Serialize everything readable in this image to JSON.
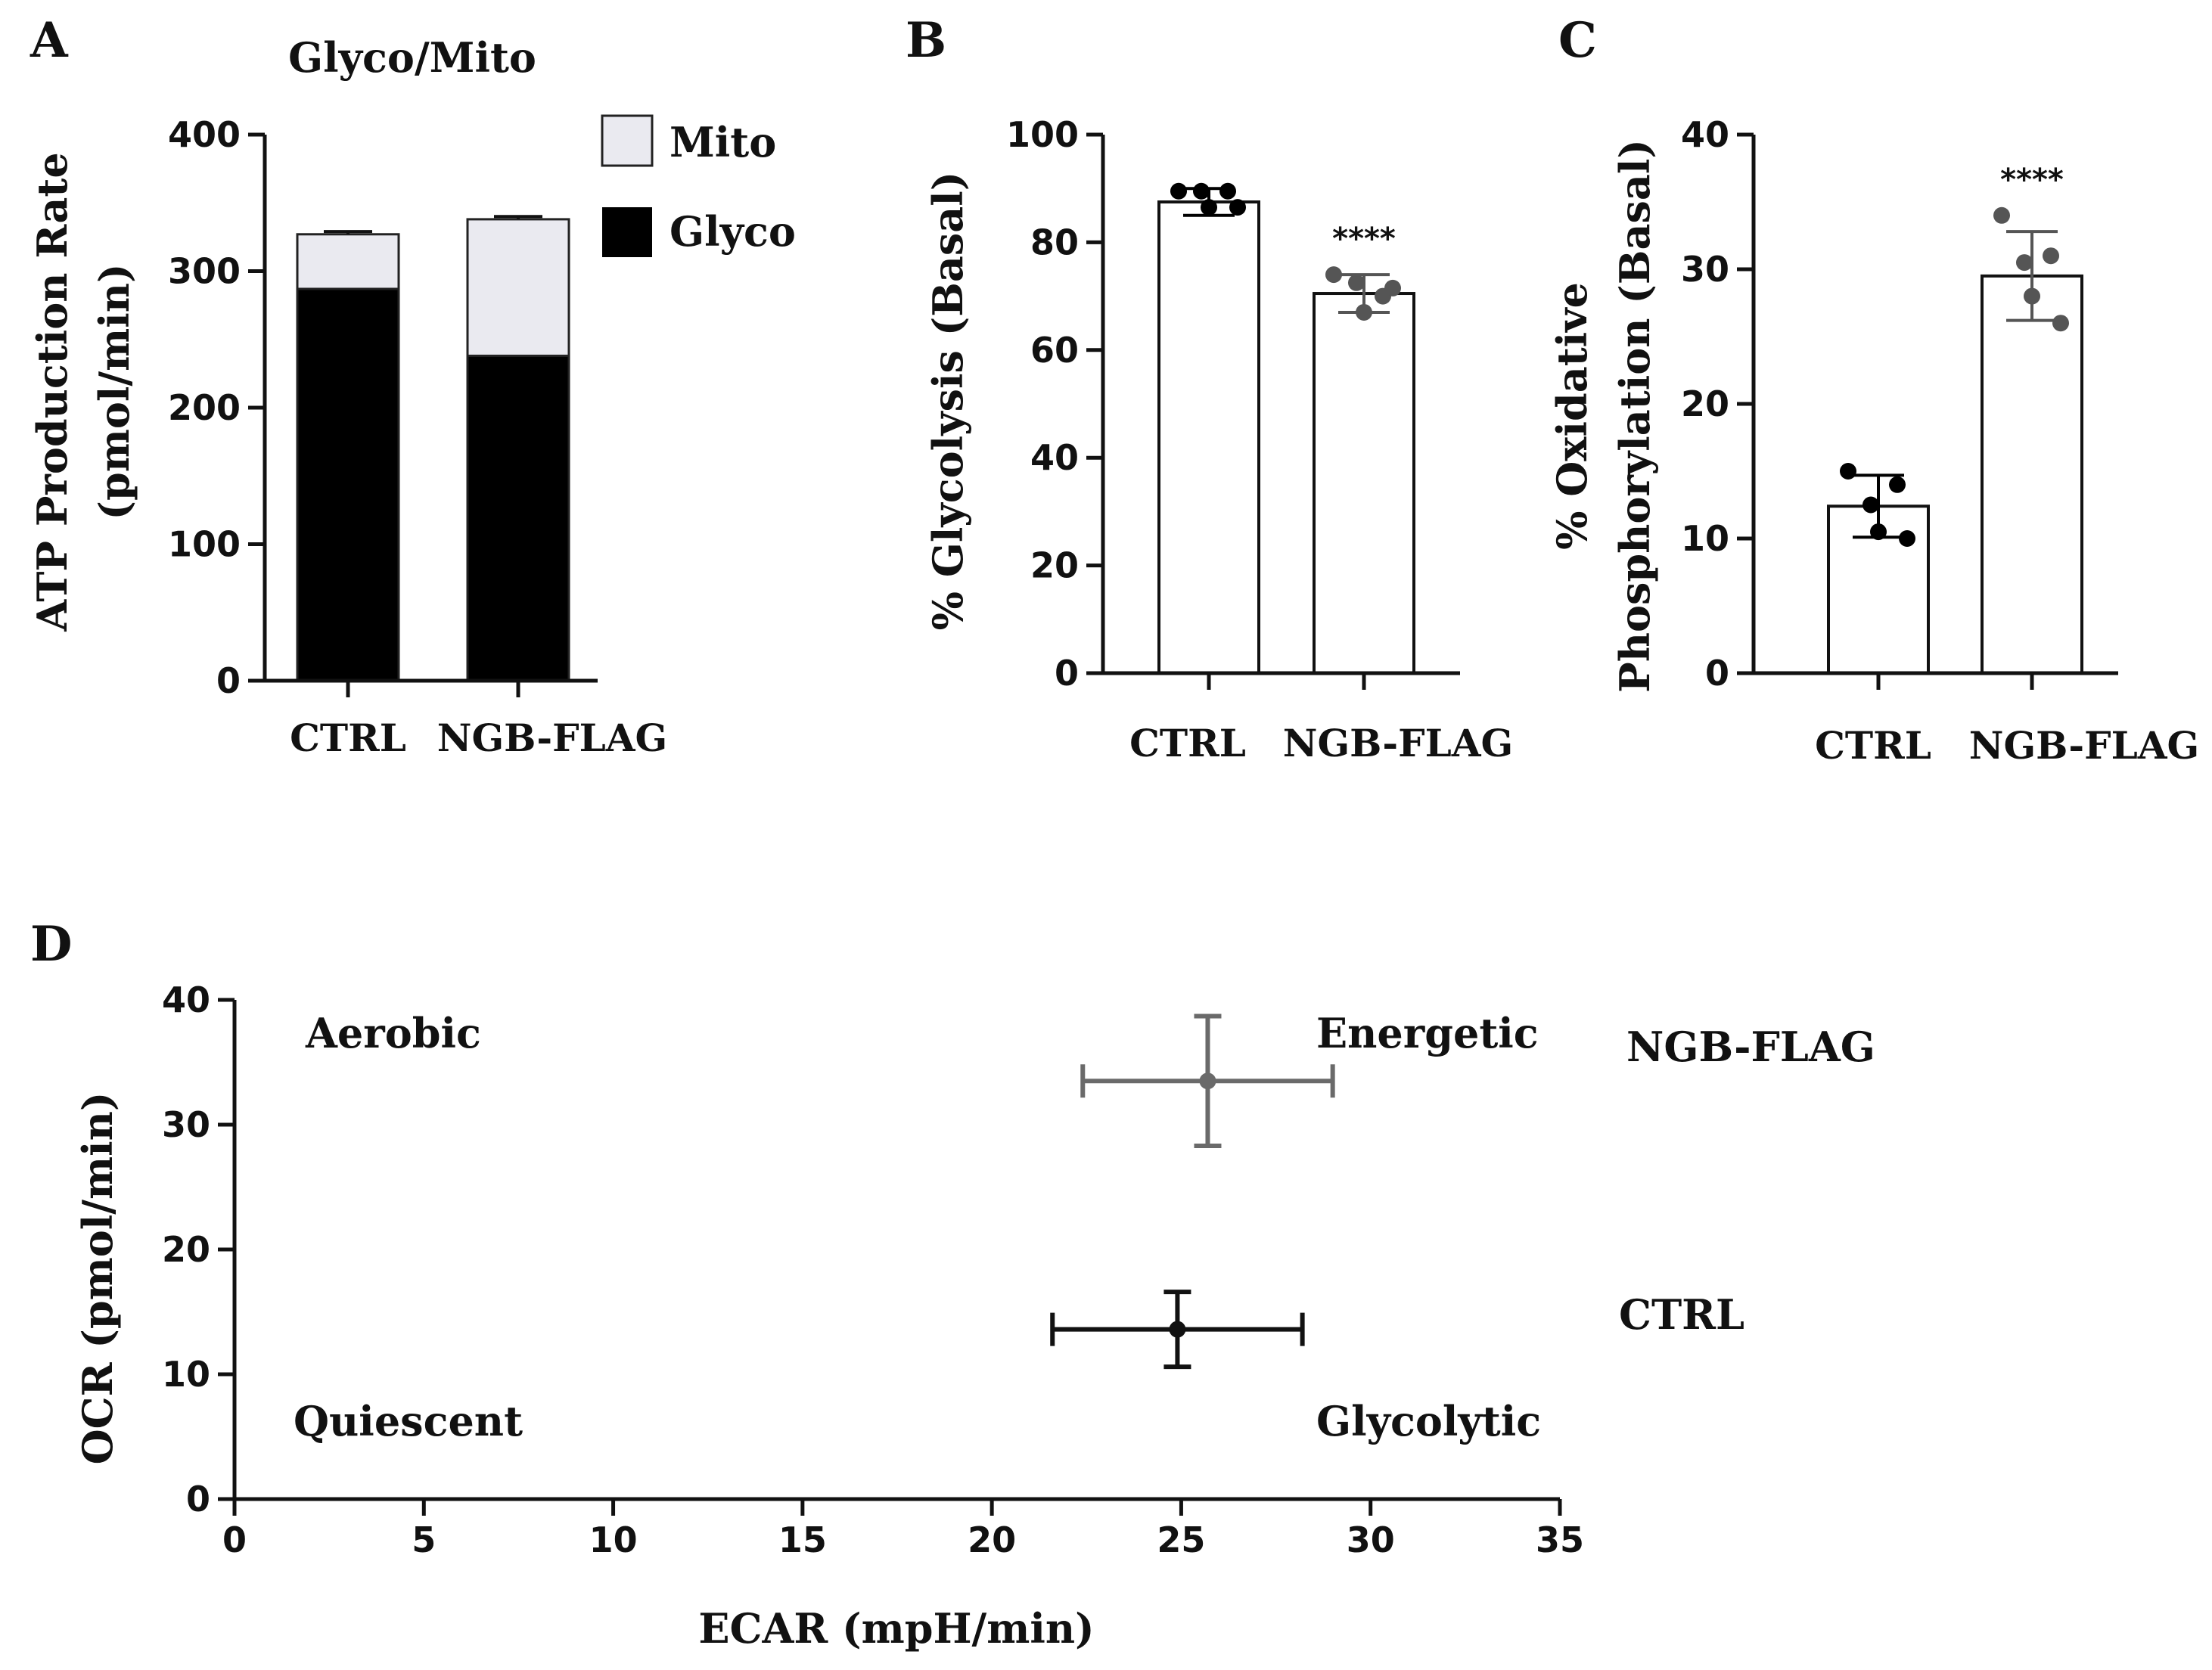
{
  "chart_data": [
    {
      "panel": "A",
      "type": "bar",
      "stacked": true,
      "title": "Glyco/Mito",
      "ylabel_line1": "ATP Production Rate",
      "ylabel_line2": "(pmol/min)",
      "ylim": [
        0,
        400
      ],
      "yticks": [
        "0",
        "100",
        "200",
        "300",
        "400"
      ],
      "categories": [
        "CTRL",
        "NGB-FLAG"
      ],
      "series": [
        {
          "name": "Glyco",
          "color": "#000000",
          "values": [
            287,
            238
          ],
          "err": [
            3,
            3
          ]
        },
        {
          "name": "Mito",
          "color": "#eaeaf0",
          "values": [
            40,
            100
          ],
          "err": [
            2,
            2
          ]
        }
      ],
      "legend": {
        "position": "top-right",
        "order": [
          "Mito",
          "Glyco"
        ]
      }
    },
    {
      "panel": "B",
      "type": "bar",
      "ylabel": "% Glycolysis (Basal)",
      "ylim": [
        0,
        100
      ],
      "yticks": [
        "0",
        "20",
        "40",
        "60",
        "80",
        "100"
      ],
      "categories": [
        "CTRL",
        "NGB-FLAG"
      ],
      "values": [
        87.5,
        70.5
      ],
      "sd": [
        2.5,
        3.5
      ],
      "points": [
        [
          89.5,
          89.5,
          86.5,
          89.5,
          86.5
        ],
        [
          74,
          72.5,
          67,
          70,
          71.5
        ]
      ],
      "point_colors": [
        "#000000",
        "#555555"
      ],
      "significance": [
        "",
        "****"
      ]
    },
    {
      "panel": "C",
      "type": "bar",
      "ylabel_line1": "% Oxidative",
      "ylabel_line2": "Phosphorylation (Basal)",
      "ylim": [
        0,
        40
      ],
      "yticks": [
        "0",
        "10",
        "20",
        "30",
        "40"
      ],
      "categories": [
        "CTRL",
        "NGB-FLAG"
      ],
      "values": [
        12.4,
        29.5
      ],
      "sd": [
        2.3,
        3.3
      ],
      "points": [
        [
          15,
          12.5,
          10.5,
          14,
          10
        ],
        [
          34,
          30.5,
          28,
          31,
          26
        ]
      ],
      "point_colors": [
        "#000000",
        "#555555"
      ],
      "significance": [
        "",
        "****"
      ]
    },
    {
      "panel": "D",
      "type": "scatter",
      "xlabel": "ECAR (mpH/min)",
      "ylabel": "OCR (pmol/min)",
      "xlim": [
        0,
        35
      ],
      "ylim": [
        0,
        40
      ],
      "xticks": [
        "0",
        "5",
        "10",
        "15",
        "20",
        "25",
        "30",
        "35"
      ],
      "yticks": [
        "0",
        "10",
        "20",
        "30",
        "40"
      ],
      "series": [
        {
          "name": "NGB-FLAG",
          "color": "#6a6a6a",
          "x": 25.7,
          "y": 33.5,
          "xerr": 3.3,
          "yerr": 5.2
        },
        {
          "name": "CTRL",
          "color": "#111111",
          "x": 24.9,
          "y": 13.6,
          "xerr": 3.3,
          "yerr": 3.0
        }
      ],
      "quadrants": {
        "top_left": "Aerobic",
        "top_right": "Energetic",
        "bottom_left": "Quiescent",
        "bottom_right": "Glycolytic"
      }
    }
  ],
  "panel_letters": [
    "A",
    "B",
    "C",
    "D"
  ]
}
